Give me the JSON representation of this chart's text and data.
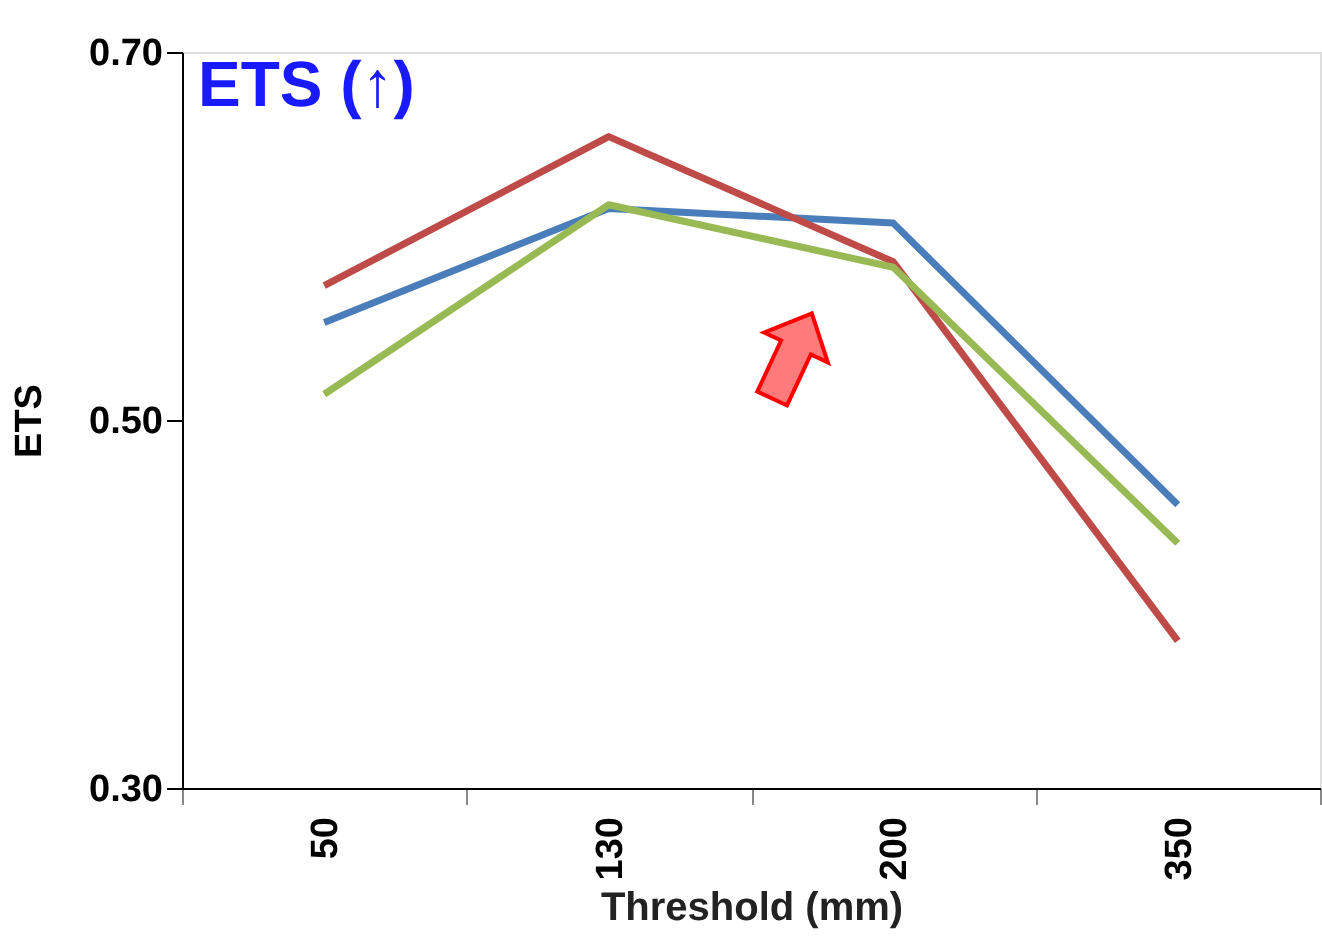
{
  "chart_data": {
    "type": "line",
    "title": "ETS (↑)",
    "xlabel": "Threshold (mm)",
    "ylabel": "ETS",
    "categories": [
      "50",
      "130",
      "200",
      "350"
    ],
    "series": [
      {
        "color": "#4a7ebb",
        "values": [
          0.553,
          0.615,
          0.607,
          0.454
        ]
      },
      {
        "color": "#be4b48",
        "values": [
          0.573,
          0.654,
          0.586,
          0.38
        ]
      },
      {
        "color": "#98b954",
        "values": [
          0.514,
          0.617,
          0.583,
          0.433
        ]
      }
    ],
    "ylim": [
      0.3,
      0.7
    ],
    "yticks": [
      {
        "value": 0.3,
        "label": "0.30"
      },
      {
        "value": 0.5,
        "label": "0.50"
      },
      {
        "value": 0.7,
        "label": "0.70"
      }
    ],
    "grid": false,
    "legend": false,
    "marker": "none",
    "line_style": "solid"
  }
}
